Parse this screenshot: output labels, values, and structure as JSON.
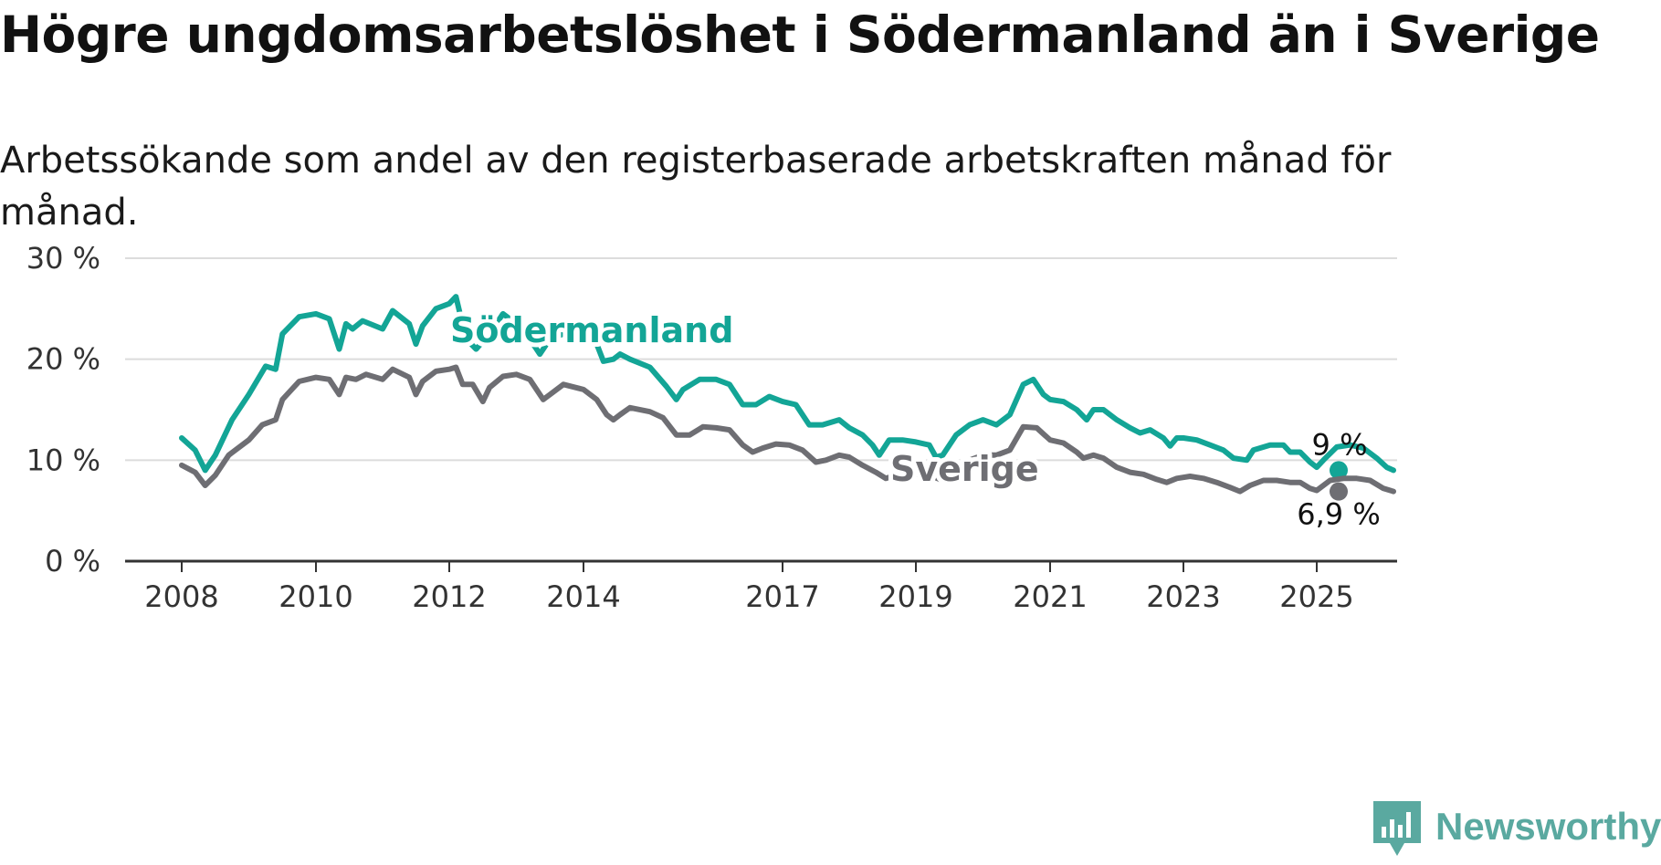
{
  "title": "Högre ungdomsarbetslöshet i Södermanland än i Sverige",
  "subtitle": "Arbetssökande som andel av den registerbaserade arbetskraften månad för månad.",
  "brand": "Newsworthy",
  "colors": {
    "sodermanland": "#13a596",
    "sverige": "#6e6e73",
    "grid": "#dcdcdc",
    "axis": "#333333"
  },
  "chart_data": {
    "type": "line",
    "x_ticks": [
      "2008",
      "2010",
      "2012",
      "2014",
      "2017",
      "2019",
      "2021",
      "2023",
      "2025"
    ],
    "y_ticks": [
      "0 %",
      "10 %",
      "20 %",
      "30 %"
    ],
    "ylim": [
      0,
      30
    ],
    "xlim": [
      2007.1,
      2025.45
    ],
    "grid": true,
    "series": [
      {
        "name": "Södermanland",
        "end_label": "9 %",
        "points": [
          [
            2008.0,
            12.2
          ],
          [
            2008.2,
            11.0
          ],
          [
            2008.35,
            9.0
          ],
          [
            2008.5,
            10.5
          ],
          [
            2008.75,
            14.0
          ],
          [
            2009.0,
            16.5
          ],
          [
            2009.25,
            19.3
          ],
          [
            2009.4,
            19.0
          ],
          [
            2009.5,
            22.5
          ],
          [
            2009.75,
            24.2
          ],
          [
            2010.0,
            24.5
          ],
          [
            2010.2,
            24.0
          ],
          [
            2010.35,
            21.0
          ],
          [
            2010.45,
            23.5
          ],
          [
            2010.55,
            23.0
          ],
          [
            2010.7,
            23.8
          ],
          [
            2011.0,
            23.0
          ],
          [
            2011.15,
            24.8
          ],
          [
            2011.4,
            23.5
          ],
          [
            2011.5,
            21.5
          ],
          [
            2011.6,
            23.3
          ],
          [
            2011.8,
            25.0
          ],
          [
            2012.0,
            25.5
          ],
          [
            2012.1,
            26.2
          ],
          [
            2012.25,
            22.0
          ],
          [
            2012.4,
            21.0
          ],
          [
            2012.6,
            22.5
          ],
          [
            2012.8,
            24.5
          ],
          [
            2013.0,
            23.5
          ],
          [
            2013.2,
            22.0
          ],
          [
            2013.35,
            20.5
          ],
          [
            2013.5,
            22.0
          ],
          [
            2013.7,
            22.5
          ],
          [
            2014.0,
            22.0
          ],
          [
            2014.2,
            21.5
          ],
          [
            2014.3,
            19.8
          ],
          [
            2014.45,
            20.0
          ],
          [
            2014.55,
            20.5
          ],
          [
            2014.7,
            20.0
          ],
          [
            2015.0,
            19.2
          ],
          [
            2015.25,
            17.3
          ],
          [
            2015.4,
            16.0
          ],
          [
            2015.5,
            17.0
          ],
          [
            2015.75,
            18.0
          ],
          [
            2016.0,
            18.0
          ],
          [
            2016.2,
            17.5
          ],
          [
            2016.4,
            15.5
          ],
          [
            2016.6,
            15.5
          ],
          [
            2016.8,
            16.3
          ],
          [
            2017.0,
            15.8
          ],
          [
            2017.2,
            15.5
          ],
          [
            2017.4,
            13.5
          ],
          [
            2017.6,
            13.5
          ],
          [
            2017.85,
            14.0
          ],
          [
            2018.0,
            13.2
          ],
          [
            2018.2,
            12.5
          ],
          [
            2018.35,
            11.5
          ],
          [
            2018.45,
            10.5
          ],
          [
            2018.6,
            12.0
          ],
          [
            2018.8,
            12.0
          ],
          [
            2019.0,
            11.8
          ],
          [
            2019.2,
            11.5
          ],
          [
            2019.3,
            10.3
          ],
          [
            2019.4,
            10.5
          ],
          [
            2019.6,
            12.5
          ],
          [
            2019.8,
            13.5
          ],
          [
            2020.0,
            14.0
          ],
          [
            2020.2,
            13.5
          ],
          [
            2020.4,
            14.5
          ],
          [
            2020.6,
            17.5
          ],
          [
            2020.75,
            18.0
          ],
          [
            2020.9,
            16.5
          ],
          [
            2021.0,
            16.0
          ],
          [
            2021.2,
            15.8
          ],
          [
            2021.4,
            15.0
          ],
          [
            2021.55,
            14.0
          ],
          [
            2021.65,
            15.0
          ],
          [
            2021.8,
            15.0
          ],
          [
            2022.0,
            14.0
          ],
          [
            2022.2,
            13.2
          ],
          [
            2022.35,
            12.7
          ],
          [
            2022.5,
            13.0
          ],
          [
            2022.7,
            12.2
          ],
          [
            2022.8,
            11.4
          ],
          [
            2022.9,
            12.2
          ],
          [
            2023.0,
            12.2
          ],
          [
            2023.2,
            12.0
          ],
          [
            2023.4,
            11.5
          ],
          [
            2023.6,
            11.0
          ],
          [
            2023.75,
            10.2
          ],
          [
            2023.95,
            10.0
          ],
          [
            2024.05,
            11.0
          ],
          [
            2024.3,
            11.5
          ],
          [
            2024.5,
            11.5
          ],
          [
            2024.6,
            10.8
          ],
          [
            2024.75,
            10.8
          ],
          [
            2024.9,
            9.8
          ],
          [
            2025.0,
            9.3
          ],
          [
            2025.1,
            10.0
          ],
          [
            2025.3,
            11.3
          ],
          [
            2025.5,
            11.5
          ],
          [
            2025.7,
            11.2
          ],
          [
            2025.9,
            10.2
          ],
          [
            2026.05,
            9.3
          ],
          [
            2026.15,
            9.0
          ]
        ]
      },
      {
        "name": "Sverige",
        "end_label": "6,9 %",
        "points": [
          [
            2008.0,
            9.5
          ],
          [
            2008.2,
            8.8
          ],
          [
            2008.35,
            7.5
          ],
          [
            2008.5,
            8.5
          ],
          [
            2008.7,
            10.5
          ],
          [
            2009.0,
            12.0
          ],
          [
            2009.2,
            13.5
          ],
          [
            2009.4,
            14.0
          ],
          [
            2009.5,
            16.0
          ],
          [
            2009.75,
            17.8
          ],
          [
            2010.0,
            18.2
          ],
          [
            2010.2,
            18.0
          ],
          [
            2010.35,
            16.5
          ],
          [
            2010.45,
            18.2
          ],
          [
            2010.6,
            18.0
          ],
          [
            2010.75,
            18.5
          ],
          [
            2011.0,
            18.0
          ],
          [
            2011.15,
            19.0
          ],
          [
            2011.4,
            18.2
          ],
          [
            2011.5,
            16.5
          ],
          [
            2011.6,
            17.8
          ],
          [
            2011.8,
            18.8
          ],
          [
            2012.0,
            19.0
          ],
          [
            2012.1,
            19.2
          ],
          [
            2012.2,
            17.5
          ],
          [
            2012.35,
            17.5
          ],
          [
            2012.5,
            15.8
          ],
          [
            2012.6,
            17.2
          ],
          [
            2012.8,
            18.3
          ],
          [
            2013.0,
            18.5
          ],
          [
            2013.2,
            18.0
          ],
          [
            2013.4,
            16.0
          ],
          [
            2013.5,
            16.5
          ],
          [
            2013.7,
            17.5
          ],
          [
            2014.0,
            17.0
          ],
          [
            2014.2,
            16.0
          ],
          [
            2014.35,
            14.5
          ],
          [
            2014.45,
            14.0
          ],
          [
            2014.55,
            14.5
          ],
          [
            2014.7,
            15.2
          ],
          [
            2015.0,
            14.8
          ],
          [
            2015.2,
            14.2
          ],
          [
            2015.4,
            12.5
          ],
          [
            2015.6,
            12.5
          ],
          [
            2015.8,
            13.3
          ],
          [
            2016.0,
            13.2
          ],
          [
            2016.2,
            13.0
          ],
          [
            2016.4,
            11.5
          ],
          [
            2016.55,
            10.8
          ],
          [
            2016.7,
            11.2
          ],
          [
            2016.9,
            11.6
          ],
          [
            2017.1,
            11.5
          ],
          [
            2017.3,
            11.0
          ],
          [
            2017.5,
            9.8
          ],
          [
            2017.65,
            10.0
          ],
          [
            2017.85,
            10.5
          ],
          [
            2018.0,
            10.3
          ],
          [
            2018.2,
            9.5
          ],
          [
            2018.4,
            8.8
          ],
          [
            2018.55,
            8.2
          ],
          [
            2018.7,
            8.5
          ],
          [
            2018.85,
            8.5
          ],
          [
            2019.0,
            8.6
          ],
          [
            2019.2,
            8.5
          ],
          [
            2019.4,
            8.0
          ],
          [
            2019.6,
            9.0
          ],
          [
            2019.8,
            10.0
          ],
          [
            2020.0,
            10.5
          ],
          [
            2020.2,
            10.5
          ],
          [
            2020.4,
            11.0
          ],
          [
            2020.6,
            13.3
          ],
          [
            2020.8,
            13.2
          ],
          [
            2021.0,
            12.0
          ],
          [
            2021.2,
            11.7
          ],
          [
            2021.4,
            10.8
          ],
          [
            2021.5,
            10.2
          ],
          [
            2021.65,
            10.5
          ],
          [
            2021.8,
            10.2
          ],
          [
            2022.0,
            9.3
          ],
          [
            2022.2,
            8.8
          ],
          [
            2022.4,
            8.6
          ],
          [
            2022.6,
            8.1
          ],
          [
            2022.75,
            7.8
          ],
          [
            2022.9,
            8.2
          ],
          [
            2023.1,
            8.4
          ],
          [
            2023.3,
            8.2
          ],
          [
            2023.5,
            7.8
          ],
          [
            2023.7,
            7.3
          ],
          [
            2023.85,
            6.9
          ],
          [
            2024.0,
            7.5
          ],
          [
            2024.2,
            8.0
          ],
          [
            2024.4,
            8.0
          ],
          [
            2024.6,
            7.8
          ],
          [
            2024.75,
            7.8
          ],
          [
            2024.9,
            7.2
          ],
          [
            2025.0,
            7.0
          ],
          [
            2025.2,
            8.0
          ],
          [
            2025.4,
            8.2
          ],
          [
            2025.6,
            8.2
          ],
          [
            2025.8,
            8.0
          ],
          [
            2026.0,
            7.2
          ],
          [
            2026.15,
            6.9
          ]
        ]
      }
    ]
  }
}
